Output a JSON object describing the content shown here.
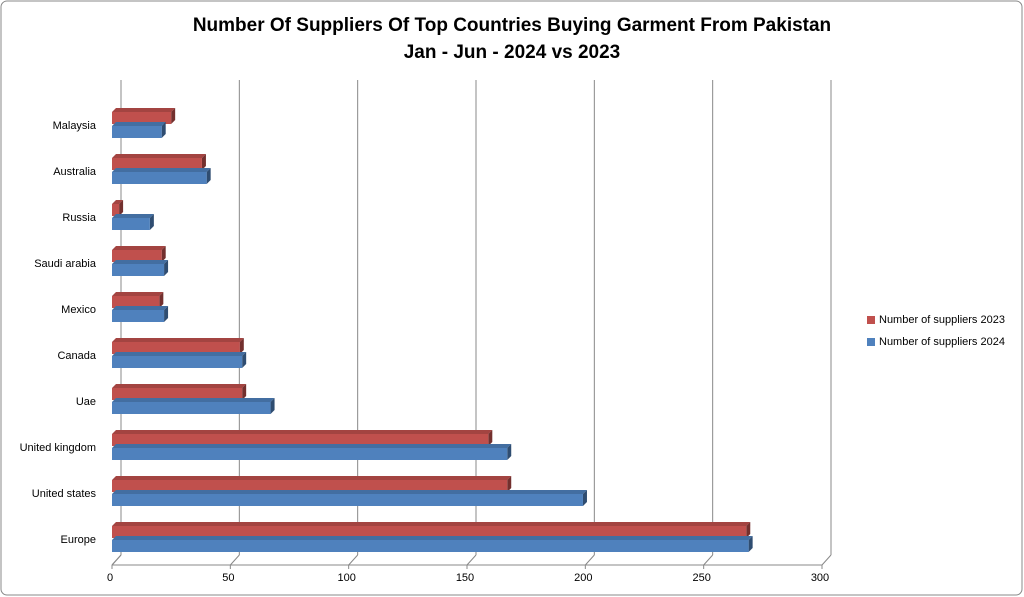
{
  "chart_data": {
    "type": "bar3d-horizontal",
    "title": "Number Of Suppliers Of Top Countries Buying Garment From Pakistan",
    "subtitle": "Jan - Jun - 2024 vs 2023",
    "categories": [
      "Europe",
      "United states",
      "United kingdom",
      "Uae",
      "Canada",
      "Mexico",
      "Saudi arabia",
      "Russia",
      "Australia",
      "Malaysia"
    ],
    "series": [
      {
        "name": "Number of suppliers 2023",
        "color": "#c0504d",
        "values": [
          268,
          167,
          159,
          55,
          54,
          20,
          21,
          3,
          38,
          25
        ]
      },
      {
        "name": "Number of suppliers 2024",
        "color": "#4f81bd",
        "values": [
          269,
          199,
          167,
          67,
          55,
          22,
          22,
          16,
          40,
          21
        ]
      }
    ],
    "xlim": [
      0,
      300
    ],
    "xticks": [
      0,
      50,
      100,
      150,
      200,
      250,
      300
    ],
    "grid": true,
    "legend": "right"
  }
}
